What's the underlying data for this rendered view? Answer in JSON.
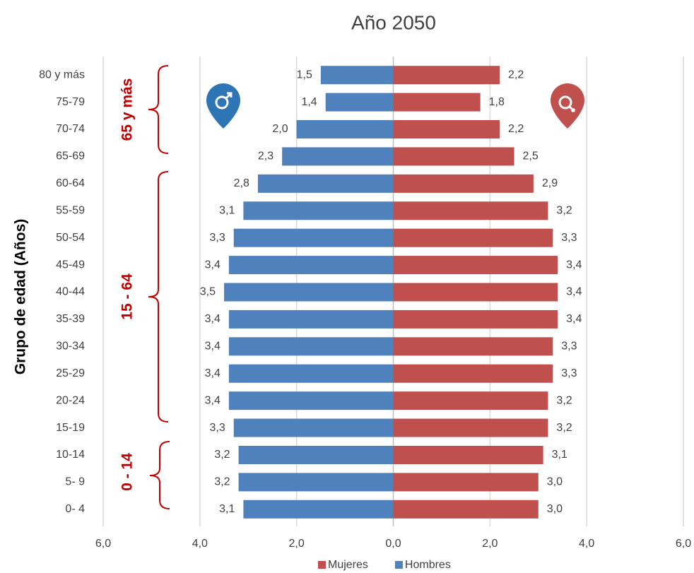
{
  "chart_data": {
    "type": "pyramid",
    "title": "Año 2050",
    "y_label": "Grupo de edad (Años)",
    "categories": [
      "80 y más",
      "75-79",
      "70-74",
      "65-69",
      "60-64",
      "55-59",
      "50-54",
      "45-49",
      "40-44",
      "35-39",
      "30-34",
      "25-29",
      "20-24",
      "15-19",
      "10-14",
      "5- 9",
      "0- 4"
    ],
    "series": [
      {
        "name": "Mujeres",
        "color": "#c0504d",
        "values": [
          2.2,
          1.8,
          2.2,
          2.5,
          2.9,
          3.2,
          3.3,
          3.4,
          3.4,
          3.4,
          3.3,
          3.3,
          3.2,
          3.2,
          3.1,
          3.0,
          3.0
        ],
        "value_labels": [
          "2,2",
          "1,8",
          "2,2",
          "2,5",
          "2,9",
          "3,2",
          "3,3",
          "3,4",
          "3,4",
          "3,4",
          "3,3",
          "3,3",
          "3,2",
          "3,2",
          "3,1",
          "3,0",
          "3,0"
        ]
      },
      {
        "name": "Hombres",
        "color": "#4f81bd",
        "values": [
          -1.5,
          -1.4,
          -2.0,
          -2.3,
          -2.8,
          -3.1,
          -3.3,
          -3.4,
          -3.5,
          -3.4,
          -3.4,
          -3.4,
          -3.4,
          -3.3,
          -3.2,
          -3.2,
          -3.1
        ],
        "value_labels": [
          "1,5",
          "1,4",
          "2,0",
          "2,3",
          "2,8",
          "3,1",
          "3,3",
          "3,4",
          "3,5",
          "3,4",
          "3,4",
          "3,4",
          "3,4",
          "3,3",
          "3,2",
          "3,2",
          "3,1"
        ]
      }
    ],
    "xlim": [
      -6,
      6
    ],
    "xticks": [
      {
        "value": -6,
        "label": "6,0"
      },
      {
        "value": -4,
        "label": "4,0"
      },
      {
        "value": -2,
        "label": "2,0"
      },
      {
        "value": 0,
        "label": "0,0"
      },
      {
        "value": 2,
        "label": "2,0"
      },
      {
        "value": 4,
        "label": "4,0"
      },
      {
        "value": 6,
        "label": "6,0"
      }
    ],
    "grid": true,
    "annotations": [
      "65 y más",
      "15 - 64",
      "0 - 14"
    ]
  }
}
